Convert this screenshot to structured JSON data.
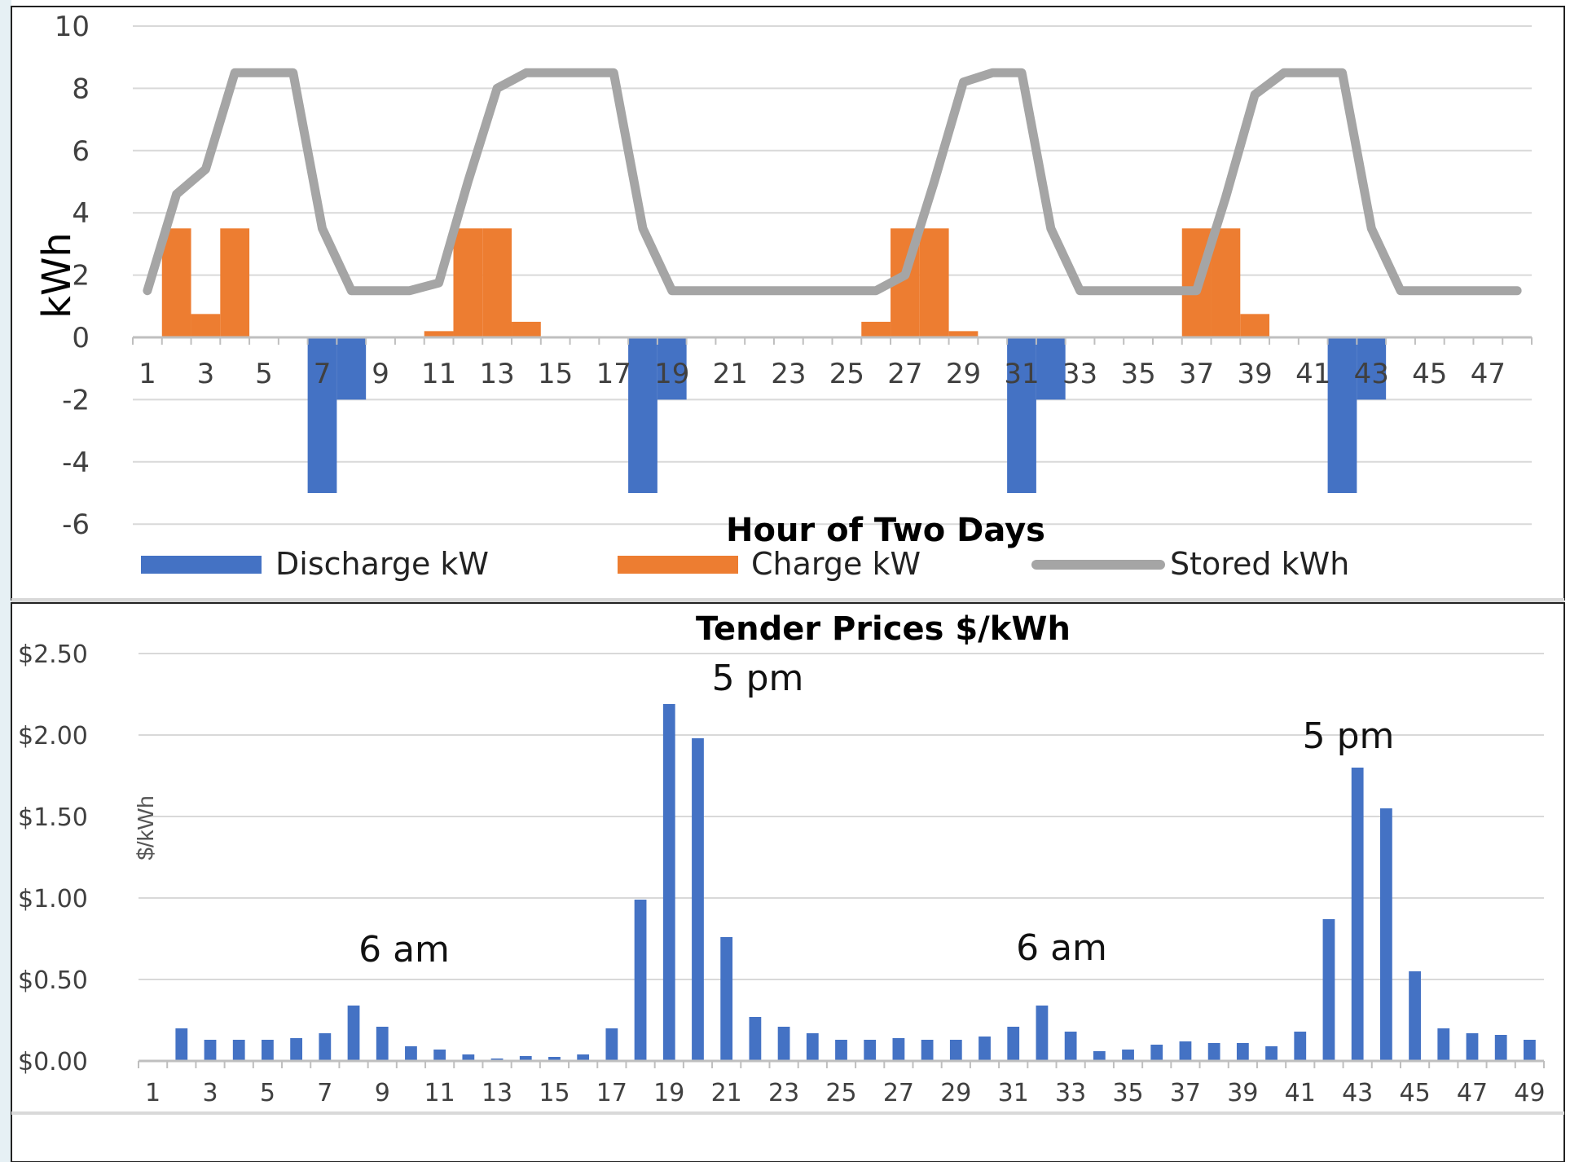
{
  "chart_data": [
    {
      "type": "bar",
      "title": "",
      "xlabel": "Hour of Two Days",
      "ylabel": "kWh",
      "ylim": [
        -6,
        10
      ],
      "yticks": [
        "10",
        "8",
        "6",
        "4",
        "2",
        "0",
        "-2",
        "-4",
        "-6"
      ],
      "x": [
        1,
        2,
        3,
        4,
        5,
        6,
        7,
        8,
        9,
        10,
        11,
        12,
        13,
        14,
        15,
        16,
        17,
        18,
        19,
        20,
        21,
        22,
        23,
        24,
        25,
        26,
        27,
        28,
        29,
        30,
        31,
        32,
        33,
        34,
        35,
        36,
        37,
        38,
        39,
        40,
        41,
        42,
        43,
        44,
        45,
        46,
        47,
        48
      ],
      "xtick_labels": [
        "1",
        "3",
        "5",
        "7",
        "9",
        "11",
        "13",
        "15",
        "17",
        "19",
        "21",
        "23",
        "25",
        "27",
        "29",
        "31",
        "33",
        "35",
        "37",
        "39",
        "41",
        "43",
        "45",
        "47"
      ],
      "grid": true,
      "legend": "bottom",
      "series": [
        {
          "name": "Discharge kW",
          "kind": "bar",
          "color": "#4472C4",
          "values": [
            0,
            0,
            0,
            0,
            0,
            0,
            -5,
            -2,
            0,
            0,
            0,
            0,
            0,
            0,
            0,
            0,
            0,
            -5,
            -2,
            0,
            0,
            0,
            0,
            0,
            0,
            0,
            0,
            0,
            0,
            0,
            -5,
            -2,
            0,
            0,
            0,
            0,
            0,
            0,
            0,
            0,
            0,
            -5,
            -2,
            0,
            0,
            0,
            0,
            0
          ]
        },
        {
          "name": "Charge kW",
          "kind": "bar",
          "color": "#ED7D31",
          "values": [
            0,
            3.5,
            0.75,
            3.5,
            0,
            0,
            0,
            0,
            0,
            0,
            0.2,
            3.5,
            3.5,
            0.5,
            0,
            0,
            0,
            0,
            0,
            0,
            0,
            0,
            0,
            0,
            0,
            0.5,
            3.5,
            3.5,
            0.2,
            0,
            0,
            0,
            0,
            0,
            0,
            0,
            3.5,
            3.5,
            0.75,
            0,
            0,
            0,
            0,
            0,
            0,
            0,
            0,
            0
          ]
        },
        {
          "name": "Stored kWh",
          "kind": "line",
          "color": "#A5A5A5",
          "values": [
            1.5,
            4.6,
            5.4,
            8.5,
            8.5,
            8.5,
            3.5,
            1.5,
            1.5,
            1.5,
            1.75,
            5,
            8,
            8.5,
            8.5,
            8.5,
            8.5,
            3.5,
            1.5,
            1.5,
            1.5,
            1.5,
            1.5,
            1.5,
            1.5,
            1.5,
            2,
            5,
            8.2,
            8.5,
            8.5,
            3.5,
            1.5,
            1.5,
            1.5,
            1.5,
            1.5,
            4.5,
            7.8,
            8.5,
            8.5,
            8.5,
            3.5,
            1.5,
            1.5,
            1.5,
            1.5,
            1.5
          ]
        }
      ]
    },
    {
      "type": "bar",
      "title": "Tender Prices $/kWh",
      "xlabel": "",
      "ylabel": "$/kWh",
      "ylim": [
        0,
        2.5
      ],
      "yticks": [
        "$2.50",
        "$2.00",
        "$1.50",
        "$1.00",
        "$0.50",
        "$0.00"
      ],
      "x": [
        1,
        2,
        3,
        4,
        5,
        6,
        7,
        8,
        9,
        10,
        11,
        12,
        13,
        14,
        15,
        16,
        17,
        18,
        19,
        20,
        21,
        22,
        23,
        24,
        25,
        26,
        27,
        28,
        29,
        30,
        31,
        32,
        33,
        34,
        35,
        36,
        37,
        38,
        39,
        40,
        41,
        42,
        43,
        44,
        45,
        46,
        47,
        48,
        49
      ],
      "xtick_labels": [
        "1",
        "3",
        "5",
        "7",
        "9",
        "11",
        "13",
        "15",
        "17",
        "19",
        "21",
        "23",
        "25",
        "27",
        "29",
        "31",
        "33",
        "35",
        "37",
        "39",
        "41",
        "43",
        "45",
        "47",
        "49"
      ],
      "grid": true,
      "legend": "none",
      "series": [
        {
          "name": "",
          "color": "#4472C4",
          "values": [
            0,
            0.2,
            0.13,
            0.13,
            0.13,
            0.14,
            0.17,
            0.34,
            0.21,
            0.09,
            0.07,
            0.04,
            0.015,
            0.03,
            0.025,
            0.04,
            0.2,
            0.99,
            2.19,
            1.98,
            0.76,
            0.27,
            0.21,
            0.17,
            0.13,
            0.13,
            0.14,
            0.13,
            0.13,
            0.15,
            0.21,
            0.34,
            0.18,
            0.06,
            0.07,
            0.1,
            0.12,
            0.11,
            0.11,
            0.09,
            0.18,
            0.87,
            1.8,
            1.55,
            0.55,
            0.2,
            0.17,
            0.16,
            0.13
          ]
        }
      ],
      "annotations": [
        "6 am",
        "5 pm",
        "6 am",
        "5 pm"
      ]
    }
  ]
}
